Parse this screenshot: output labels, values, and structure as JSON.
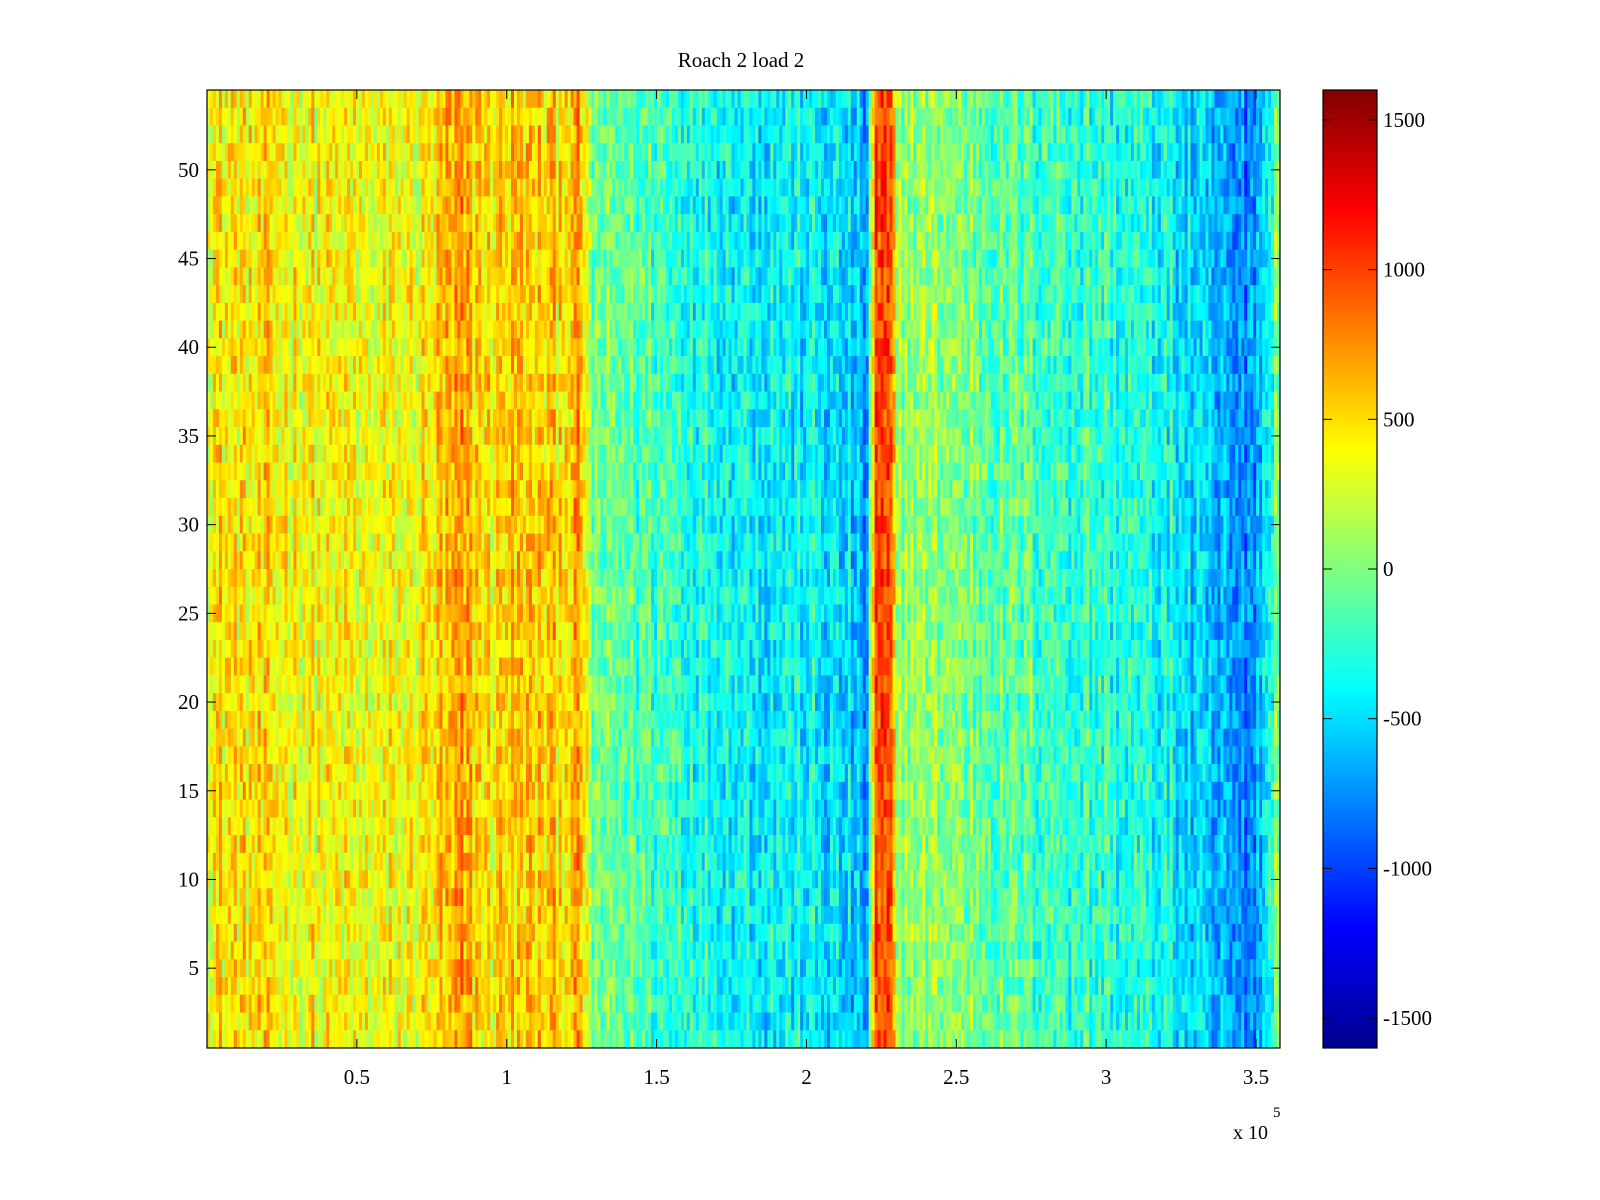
{
  "chart_data": {
    "type": "heatmap",
    "title": "Roach 2 load 2",
    "xlabel": "",
    "ylabel": "",
    "x_exponent_label": {
      "base": "x 10",
      "exponent": "5"
    },
    "xlim": [
      0,
      3.58
    ],
    "ylim": [
      0.5,
      54.5
    ],
    "x_ticks": [
      0.5,
      1,
      1.5,
      2,
      2.5,
      3,
      3.5
    ],
    "x_tick_labels": [
      "0.5",
      "1",
      "1.5",
      "2",
      "2.5",
      "3",
      "3.5"
    ],
    "y_ticks": [
      5,
      10,
      15,
      20,
      25,
      30,
      35,
      40,
      45,
      50
    ],
    "y_tick_labels": [
      "5",
      "10",
      "15",
      "20",
      "25",
      "30",
      "35",
      "40",
      "45",
      "50"
    ],
    "rows": 54,
    "colormap": "jet",
    "clim": [
      -1600,
      1600
    ],
    "colorbar": {
      "ticks": [
        1500,
        1000,
        500,
        0,
        -500,
        -1000,
        -1500
      ],
      "tick_labels": [
        "1500",
        "1000",
        "500",
        "0",
        "-500",
        "-1000",
        "-1500"
      ],
      "location": "right"
    },
    "column_profile": [
      {
        "x": 0.0,
        "value": 480
      },
      {
        "x": 0.1,
        "value": 460
      },
      {
        "x": 0.25,
        "value": 430
      },
      {
        "x": 0.4,
        "value": 380
      },
      {
        "x": 0.55,
        "value": 340
      },
      {
        "x": 0.7,
        "value": 360
      },
      {
        "x": 0.85,
        "value": 650
      },
      {
        "x": 0.95,
        "value": 450
      },
      {
        "x": 1.0,
        "value": 580
      },
      {
        "x": 1.1,
        "value": 520
      },
      {
        "x": 1.2,
        "value": 560
      },
      {
        "x": 1.25,
        "value": 640
      },
      {
        "x": 1.28,
        "value": -50
      },
      {
        "x": 1.4,
        "value": -120
      },
      {
        "x": 1.6,
        "value": -250
      },
      {
        "x": 1.8,
        "value": -380
      },
      {
        "x": 2.0,
        "value": -420
      },
      {
        "x": 2.15,
        "value": -550
      },
      {
        "x": 2.2,
        "value": -750
      },
      {
        "x": 2.23,
        "value": 900
      },
      {
        "x": 2.28,
        "value": 950
      },
      {
        "x": 2.3,
        "value": 100
      },
      {
        "x": 2.45,
        "value": 50
      },
      {
        "x": 2.6,
        "value": -80
      },
      {
        "x": 2.8,
        "value": -180
      },
      {
        "x": 3.0,
        "value": -260
      },
      {
        "x": 3.2,
        "value": -380
      },
      {
        "x": 3.35,
        "value": -650
      },
      {
        "x": 3.45,
        "value": -800
      },
      {
        "x": 3.52,
        "value": -600
      },
      {
        "x": 3.58,
        "value": 150
      }
    ],
    "noise_amplitude": 260
  }
}
